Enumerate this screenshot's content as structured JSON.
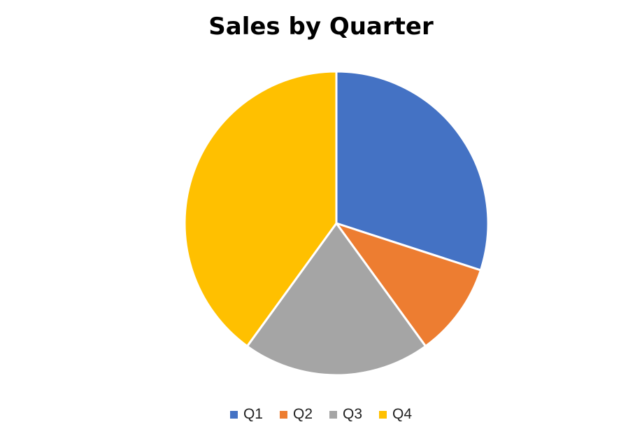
{
  "chart_data": {
    "type": "pie",
    "title": "Sales by Quarter",
    "categories": [
      "Q1",
      "Q2",
      "Q3",
      "Q4"
    ],
    "values": [
      30,
      10,
      20,
      40
    ],
    "colors": [
      "#4472C4",
      "#ED7D31",
      "#A5A5A5",
      "#FFC000"
    ],
    "start": "12 o'clock",
    "direction": "clockwise",
    "legend": "bottom"
  }
}
